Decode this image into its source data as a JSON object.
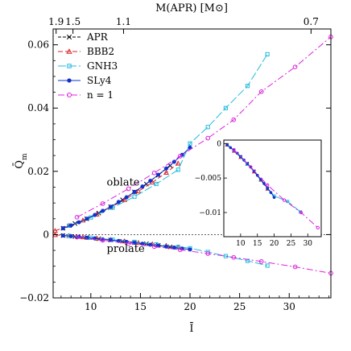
{
  "chart_data": {
    "type": "line",
    "xlabel": "Ī",
    "ylabel": "Q̄",
    "ylabel_sub": "m",
    "top_axis_label": "M(APR) [M⊙]",
    "xlim": [
      6.2,
      34.2
    ],
    "ylim": [
      -0.02,
      0.065
    ],
    "x_ticks": [
      10,
      15,
      20,
      25,
      30
    ],
    "x_tick_labels": [
      "10",
      "15",
      "20",
      "25",
      "30"
    ],
    "y_ticks": [
      -0.02,
      0,
      0.02,
      0.04,
      0.06
    ],
    "y_tick_labels": [
      "−0.02",
      "0",
      "0.02",
      "0.04",
      "0.06"
    ],
    "top_ticks": [
      {
        "x": 6.5,
        "label": "1.9"
      },
      {
        "x": 8.2,
        "label": "1.5"
      },
      {
        "x": 13.3,
        "label": "1.1"
      },
      {
        "x": 32.2,
        "label": "0.7"
      }
    ],
    "legend": {
      "placement": "top-left",
      "entries": [
        {
          "name": "APR",
          "color": "#000000",
          "marker": "x",
          "dash": "4,2"
        },
        {
          "name": "BBB2",
          "color": "#dd2222",
          "marker": "triangle",
          "dash": "6,3"
        },
        {
          "name": "GNH3",
          "color": "#22bbdd",
          "marker": "square",
          "dash": "10,3"
        },
        {
          "name": "SLy4",
          "color": "#1133cc",
          "marker": "dot",
          "dash": ""
        },
        {
          "name": "n = 1",
          "color": "#dd22dd",
          "marker": "circle",
          "dash": "8,3,2,3"
        }
      ]
    },
    "annotations": [
      {
        "text": "oblate",
        "x": 11.6,
        "y": 0.0155
      },
      {
        "text": "prolate",
        "x": 11.6,
        "y": -0.0055
      }
    ],
    "series": [
      {
        "name": "APR",
        "branch": "oblate",
        "x": [
          7.2,
          8.4,
          9.6,
          10.8,
          12.0,
          13.2,
          14.4,
          15.6,
          16.8,
          18.0
        ],
        "y": [
          0.002,
          0.0035,
          0.005,
          0.0068,
          0.0088,
          0.011,
          0.0135,
          0.016,
          0.0188,
          0.0218
        ]
      },
      {
        "name": "APR",
        "branch": "prolate",
        "x": [
          7.2,
          8.4,
          9.6,
          10.8,
          12.0,
          13.2,
          14.4,
          15.6,
          16.8,
          18.0
        ],
        "y": [
          -0.0003,
          -0.0006,
          -0.0009,
          -0.0013,
          -0.0017,
          -0.0021,
          -0.0025,
          -0.0029,
          -0.0034,
          -0.0039
        ]
      },
      {
        "name": "BBB2",
        "branch": "oblate",
        "x": [
          6.4,
          7.8,
          9.2,
          10.6,
          12.0,
          13.4,
          14.8,
          16.2,
          17.6,
          18.8
        ],
        "y": [
          0.0012,
          0.0028,
          0.0045,
          0.0064,
          0.0086,
          0.011,
          0.0137,
          0.0165,
          0.0196,
          0.0225
        ]
      },
      {
        "name": "BBB2",
        "branch": "prolate",
        "x": [
          6.4,
          7.8,
          9.2,
          10.6,
          12.0,
          13.4,
          14.8,
          16.2,
          17.6,
          18.8
        ],
        "y": [
          -0.0001,
          -0.0004,
          -0.0008,
          -0.0012,
          -0.0016,
          -0.0021,
          -0.0026,
          -0.003,
          -0.0035,
          -0.004
        ]
      },
      {
        "name": "GNH3",
        "branch": "oblate",
        "x": [
          7.8,
          10.0,
          12.2,
          14.4,
          16.6,
          18.8,
          20.0,
          21.8,
          23.6,
          25.8,
          27.8
        ],
        "y": [
          0.0028,
          0.0054,
          0.0085,
          0.012,
          0.016,
          0.0205,
          0.0288,
          0.034,
          0.04,
          0.047,
          0.057
        ]
      },
      {
        "name": "GNH3",
        "branch": "prolate",
        "x": [
          7.8,
          10.0,
          12.2,
          14.4,
          16.6,
          18.8,
          20.0,
          21.8,
          23.6,
          25.8,
          27.8
        ],
        "y": [
          -0.0004,
          -0.001,
          -0.0016,
          -0.0023,
          -0.0031,
          -0.0039,
          -0.0043,
          -0.0055,
          -0.0068,
          -0.0083,
          -0.0098
        ]
      },
      {
        "name": "SLy4",
        "branch": "oblate",
        "x": [
          7.2,
          8.0,
          8.8,
          9.6,
          10.4,
          11.2,
          12.0,
          12.8,
          13.6,
          14.4,
          15.2,
          16.0,
          16.8,
          17.6,
          18.4,
          19.2,
          20.0
        ],
        "y": [
          0.002,
          0.0029,
          0.0039,
          0.005,
          0.0062,
          0.0075,
          0.0088,
          0.0103,
          0.0118,
          0.0135,
          0.0152,
          0.017,
          0.0189,
          0.0209,
          0.023,
          0.0252,
          0.0275
        ]
      },
      {
        "name": "SLy4",
        "branch": "prolate",
        "x": [
          7.2,
          8.0,
          8.8,
          9.6,
          10.4,
          11.2,
          12.0,
          12.8,
          13.6,
          14.4,
          15.2,
          16.0,
          16.8,
          17.6,
          18.4,
          19.2,
          20.0
        ],
        "y": [
          -0.0003,
          -0.0005,
          -0.0007,
          -0.001,
          -0.0012,
          -0.0015,
          -0.0017,
          -0.002,
          -0.0023,
          -0.0026,
          -0.0029,
          -0.0032,
          -0.0035,
          -0.0038,
          -0.0041,
          -0.0044,
          -0.0047
        ]
      },
      {
        "name": "n = 1",
        "branch": "oblate",
        "x": [
          8.6,
          11.2,
          13.8,
          16.4,
          19.0,
          21.8,
          24.4,
          27.2,
          30.6,
          34.2
        ],
        "y": [
          0.0055,
          0.0098,
          0.0145,
          0.0195,
          0.0248,
          0.0305,
          0.0363,
          0.0452,
          0.053,
          0.0625
        ]
      },
      {
        "name": "n = 1",
        "branch": "prolate",
        "x": [
          8.6,
          11.2,
          13.8,
          16.4,
          19.0,
          21.8,
          24.4,
          27.2,
          30.6,
          34.2
        ],
        "y": [
          -0.0008,
          -0.0018,
          -0.0028,
          -0.0038,
          -0.0048,
          -0.006,
          -0.0072,
          -0.0085,
          -0.0102,
          -0.0122
        ]
      }
    ],
    "inset": {
      "type": "line",
      "xlim": [
        5,
        34
      ],
      "ylim": [
        -0.0135,
        0.0005
      ],
      "x_ticks": [
        10,
        15,
        20,
        25,
        30
      ],
      "x_tick_labels": [
        "10",
        "15",
        "20",
        "25",
        "30"
      ],
      "y_ticks": [
        0,
        -0.005,
        -0.01
      ],
      "y_tick_labels": [
        "0",
        "−0.005",
        "−0.01"
      ],
      "series": [
        {
          "name": "APR",
          "x": [
            6,
            8,
            10,
            12,
            14,
            16,
            18
          ],
          "y": [
            -0.0002,
            -0.001,
            -0.0019,
            -0.0029,
            -0.004,
            -0.0052,
            -0.0065
          ]
        },
        {
          "name": "BBB2",
          "x": [
            6,
            8,
            10,
            12,
            14,
            16,
            18
          ],
          "y": [
            -0.0002,
            -0.0011,
            -0.002,
            -0.003,
            -0.0041,
            -0.0053,
            -0.0066
          ]
        },
        {
          "name": "GNH3",
          "x": [
            8,
            12,
            16,
            20,
            24,
            27.8
          ],
          "y": [
            -0.001,
            -0.003,
            -0.0052,
            -0.0076,
            -0.0084,
            -0.0099
          ]
        },
        {
          "name": "SLy4",
          "x": [
            6,
            7,
            8,
            9,
            10,
            11,
            12,
            13,
            14,
            15,
            16,
            17,
            18,
            19,
            20
          ],
          "y": [
            -0.0002,
            -0.0006,
            -0.001,
            -0.0014,
            -0.0019,
            -0.0024,
            -0.0029,
            -0.0034,
            -0.004,
            -0.0046,
            -0.0052,
            -0.0058,
            -0.0065,
            -0.0071,
            -0.0078
          ]
        },
        {
          "name": "n = 1",
          "x": [
            8,
            13,
            18,
            23,
            28,
            33
          ],
          "y": [
            -0.0009,
            -0.0034,
            -0.006,
            -0.0082,
            -0.01,
            -0.0122
          ]
        }
      ]
    }
  }
}
